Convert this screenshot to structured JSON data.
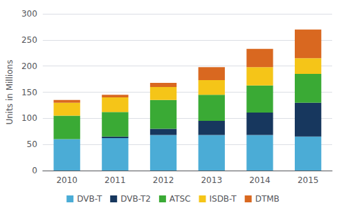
{
  "chart_data": {
    "type": "bar",
    "stacked": true,
    "categories": [
      "2010",
      "2011",
      "2012",
      "2013",
      "2014",
      "2015"
    ],
    "series": [
      {
        "name": "DVB-T",
        "color": "#4bacd6",
        "values": [
          60,
          62,
          68,
          68,
          68,
          65
        ]
      },
      {
        "name": "DVB-T2",
        "color": "#17375e",
        "values": [
          0,
          3,
          12,
          27,
          43,
          65
        ]
      },
      {
        "name": "ATSC",
        "color": "#3aaa35",
        "values": [
          45,
          47,
          55,
          50,
          52,
          55
        ]
      },
      {
        "name": "ISDB-T",
        "color": "#f5c518",
        "values": [
          25,
          28,
          25,
          28,
          35,
          30
        ]
      },
      {
        "name": "DTMB",
        "color": "#d96820",
        "values": [
          5,
          5,
          8,
          25,
          35,
          55
        ]
      }
    ],
    "ylabel": "Units in Millions",
    "ylim": [
      0,
      300
    ],
    "yticks": [
      0,
      50,
      100,
      150,
      200,
      250,
      300
    ],
    "grid": true,
    "legend": "bottom"
  }
}
